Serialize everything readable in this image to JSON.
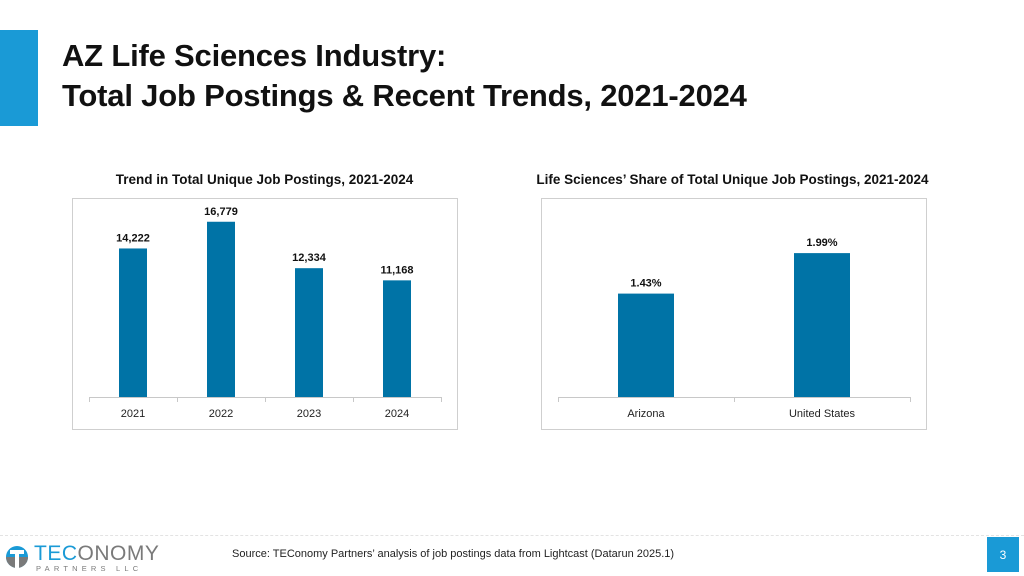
{
  "slide": {
    "title_line1": "AZ Life Sciences Industry:",
    "title_line2": "Total Job Postings & Recent Trends, 2021-2024",
    "source": "Source: TEConomy Partners’ analysis of job postings data from Lightcast (Datarun 2025.1)",
    "page_number": "3",
    "logo": {
      "word_part1": "TEC",
      "word_part2": "ONOMY",
      "sub": "PARTNERS LLC"
    },
    "colors": {
      "accent": "#1a9ad6",
      "bar": "#0073a6"
    }
  },
  "chart_data": [
    {
      "type": "bar",
      "title": "Trend in Total Unique Job Postings, 2021-2024",
      "categories": [
        "2021",
        "2022",
        "2023",
        "2024"
      ],
      "values": [
        14222,
        16779,
        12334,
        11168
      ],
      "value_labels": [
        "14,222",
        "16,779",
        "12,334",
        "11,168"
      ],
      "ylim": [
        0,
        18000
      ],
      "grid": false,
      "legend": "none"
    },
    {
      "type": "bar",
      "title": "Life Sciences’ Share of Total Unique Job Postings, 2021-2024",
      "categories": [
        "Arizona",
        "United States"
      ],
      "values": [
        1.43,
        1.99
      ],
      "value_labels": [
        "1.43%",
        "1.99%"
      ],
      "ylim": [
        0,
        2.6
      ],
      "grid": false,
      "legend": "none"
    }
  ]
}
